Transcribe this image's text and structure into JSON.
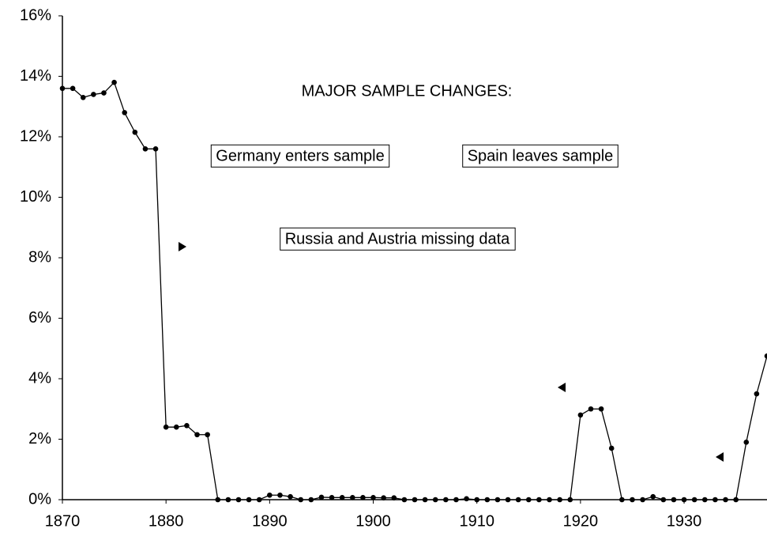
{
  "chart_data": {
    "type": "line",
    "x": [
      1870,
      1871,
      1872,
      1873,
      1874,
      1875,
      1876,
      1877,
      1878,
      1879,
      1880,
      1881,
      1882,
      1883,
      1884,
      1885,
      1886,
      1887,
      1888,
      1889,
      1890,
      1891,
      1892,
      1893,
      1894,
      1895,
      1896,
      1897,
      1898,
      1899,
      1900,
      1901,
      1902,
      1903,
      1904,
      1905,
      1906,
      1907,
      1908,
      1909,
      1910,
      1911,
      1912,
      1913,
      1914,
      1915,
      1916,
      1917,
      1918,
      1919,
      1920,
      1921,
      1922,
      1923,
      1924,
      1925,
      1926,
      1927,
      1928,
      1929,
      1930,
      1931,
      1932,
      1933,
      1934,
      1935,
      1936,
      1937,
      1938
    ],
    "series": [
      {
        "color": "#000000",
        "values": [
          13.6,
          13.6,
          13.3,
          13.4,
          13.45,
          13.8,
          12.8,
          12.15,
          11.6,
          11.6,
          2.4,
          2.4,
          2.45,
          2.15,
          2.15,
          0,
          0,
          0,
          0,
          0,
          0.15,
          0.15,
          0.1,
          0,
          0,
          0.08,
          0.07,
          0.07,
          0.07,
          0.07,
          0.07,
          0.06,
          0.06,
          0,
          0,
          0,
          0,
          0,
          0,
          0.03,
          0,
          0,
          0,
          0,
          0,
          0,
          0,
          0,
          0,
          0,
          2.8,
          3.0,
          3.0,
          1.7,
          0,
          0,
          0,
          0.1,
          0,
          0,
          0,
          0,
          0,
          0,
          0,
          0,
          1.9,
          3.5,
          4.75
        ]
      }
    ],
    "xlim": [
      1870,
      1938
    ],
    "xticks": [
      1870,
      1880,
      1890,
      1900,
      1910,
      1920,
      1930
    ],
    "ylim": [
      0,
      16
    ],
    "yticks": [
      {
        "value": 0,
        "label": "0%"
      },
      {
        "value": 2,
        "label": "2%"
      },
      {
        "value": 4,
        "label": "4%"
      },
      {
        "value": 6,
        "label": "6%"
      },
      {
        "value": 8,
        "label": "8%"
      },
      {
        "value": 10,
        "label": "10%"
      },
      {
        "value": 12,
        "label": "12%"
      },
      {
        "value": 14,
        "label": "14%"
      },
      {
        "value": 16,
        "label": "16%"
      }
    ],
    "annotations": [
      "MAJOR SAMPLE CHANGES:",
      "Germany enters sample",
      "Spain leaves sample",
      "Russia and Austria missing data"
    ]
  }
}
